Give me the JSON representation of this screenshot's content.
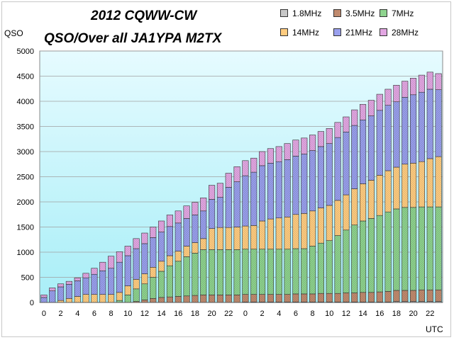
{
  "chart_data": {
    "type": "bar",
    "stacked": true,
    "title": "2012 CQWW-CW",
    "subtitle": "QSO/Over all  JA1YPA  M2TX",
    "ylabel": "QSO",
    "xlabel": "UTC",
    "ylim": [
      0,
      5000
    ],
    "yticks": [
      0,
      500,
      1000,
      1500,
      2000,
      2500,
      3000,
      3500,
      4000,
      4500,
      5000
    ],
    "grid": true,
    "legend_position": "top-right",
    "categories": [
      "0",
      "1",
      "2",
      "3",
      "4",
      "5",
      "6",
      "7",
      "8",
      "9",
      "10",
      "11",
      "12",
      "13",
      "14",
      "15",
      "16",
      "17",
      "18",
      "19",
      "20",
      "21",
      "22",
      "23",
      "0",
      "1",
      "2",
      "3",
      "4",
      "5",
      "6",
      "7",
      "8",
      "9",
      "10",
      "11",
      "12",
      "13",
      "14",
      "15",
      "16",
      "17",
      "18",
      "19",
      "20",
      "21",
      "22",
      "23"
    ],
    "xtick_labels": [
      "0",
      "2",
      "4",
      "6",
      "8",
      "10",
      "12",
      "14",
      "16",
      "18",
      "20",
      "22",
      "0",
      "2",
      "4",
      "6",
      "8",
      "10",
      "12",
      "14",
      "16",
      "18",
      "20",
      "22"
    ],
    "series": [
      {
        "name": "1.8MHz",
        "color": "#c8c8c8",
        "values": [
          0,
          0,
          0,
          0,
          0,
          0,
          0,
          0,
          0,
          0,
          0,
          0,
          0,
          0,
          0,
          0,
          0,
          0,
          0,
          0,
          0,
          0,
          0,
          0,
          10,
          10,
          10,
          10,
          10,
          10,
          10,
          10,
          10,
          10,
          10,
          10,
          10,
          10,
          10,
          10,
          10,
          10,
          20,
          20,
          20,
          20,
          20,
          20
        ]
      },
      {
        "name": "3.5MHz",
        "color": "#c08a6e",
        "values": [
          0,
          0,
          0,
          0,
          0,
          0,
          0,
          0,
          0,
          0,
          0,
          20,
          50,
          80,
          100,
          110,
          120,
          130,
          140,
          150,
          150,
          150,
          150,
          150,
          150,
          150,
          150,
          150,
          150,
          150,
          160,
          160,
          160,
          170,
          170,
          170,
          180,
          180,
          190,
          190,
          200,
          210,
          220,
          220,
          220,
          230,
          230,
          230
        ]
      },
      {
        "name": "7MHz",
        "color": "#8fd48f",
        "values": [
          0,
          0,
          0,
          0,
          0,
          0,
          0,
          0,
          0,
          40,
          150,
          250,
          320,
          420,
          520,
          620,
          700,
          780,
          840,
          900,
          900,
          900,
          900,
          900,
          900,
          900,
          900,
          900,
          900,
          900,
          900,
          900,
          950,
          1000,
          1050,
          1150,
          1250,
          1350,
          1420,
          1470,
          1520,
          1580,
          1620,
          1650,
          1650,
          1650,
          1650,
          1650
        ]
      },
      {
        "name": "14MHz",
        "color": "#ffcc80",
        "values": [
          0,
          0,
          40,
          80,
          120,
          160,
          160,
          160,
          160,
          160,
          180,
          190,
          200,
          200,
          200,
          200,
          200,
          210,
          210,
          220,
          420,
          440,
          440,
          450,
          460,
          470,
          560,
          600,
          620,
          640,
          680,
          700,
          700,
          700,
          700,
          700,
          700,
          720,
          740,
          760,
          800,
          820,
          830,
          860,
          880,
          900,
          960,
          1000
        ]
      },
      {
        "name": "21MHz",
        "color": "#9aa0ee",
        "values": [
          100,
          230,
          270,
          280,
          310,
          330,
          400,
          470,
          520,
          600,
          600,
          610,
          600,
          590,
          580,
          580,
          560,
          550,
          550,
          550,
          580,
          600,
          800,
          900,
          1000,
          1060,
          1100,
          1110,
          1120,
          1140,
          1160,
          1180,
          1200,
          1220,
          1230,
          1250,
          1250,
          1260,
          1270,
          1280,
          1290,
          1300,
          1300,
          1330,
          1360,
          1380,
          1380,
          1330
        ]
      },
      {
        "name": "28MHz",
        "color": "#e2a6e2",
        "values": [
          50,
          60,
          60,
          60,
          60,
          90,
          120,
          170,
          240,
          210,
          190,
          200,
          210,
          210,
          220,
          230,
          240,
          250,
          250,
          260,
          280,
          280,
          280,
          300,
          300,
          280,
          280,
          290,
          300,
          320,
          320,
          320,
          310,
          300,
          300,
          300,
          300,
          310,
          310,
          310,
          320,
          320,
          330,
          320,
          330,
          340,
          340,
          320
        ]
      }
    ]
  }
}
